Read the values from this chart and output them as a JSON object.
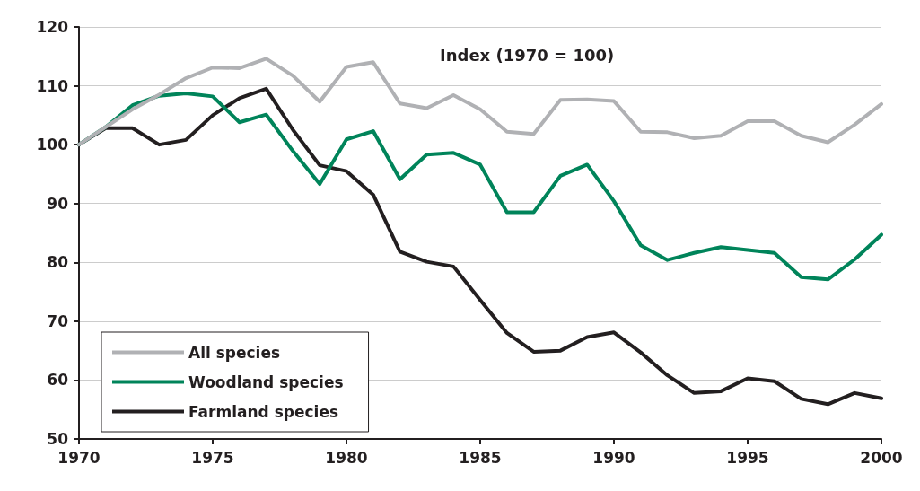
{
  "chart_data": {
    "type": "line",
    "annotations": [
      "Index (1970 = 100)"
    ],
    "x": [
      1970,
      1971,
      1972,
      1973,
      1974,
      1975,
      1976,
      1977,
      1978,
      1979,
      1980,
      1981,
      1982,
      1983,
      1984,
      1985,
      1986,
      1987,
      1988,
      1989,
      1990,
      1991,
      1992,
      1993,
      1994,
      1995,
      1996,
      1997,
      1998,
      1999,
      2000
    ],
    "series": [
      {
        "name": "All species",
        "color": "#b0b1b4",
        "values": [
          100,
          103,
          106,
          108.5,
          111.3,
          113.1,
          113,
          114.6,
          111.7,
          107.3,
          113.2,
          114,
          107,
          106.2,
          108.4,
          106,
          102.2,
          101.8,
          107.6,
          107.7,
          107.4,
          102.2,
          102.1,
          101.1,
          101.5,
          104,
          104,
          101.5,
          100.4,
          103.4,
          106.9
        ]
      },
      {
        "name": "Woodland species",
        "color": "#00845a",
        "values": [
          100,
          103,
          106.7,
          108.3,
          108.7,
          108.2,
          103.8,
          105.1,
          98.9,
          93.3,
          100.9,
          102.3,
          94.1,
          98.3,
          98.6,
          96.6,
          88.5,
          88.5,
          94.7,
          96.6,
          90.4,
          82.9,
          80.4,
          81.6,
          82.6,
          82.1,
          81.6,
          77.5,
          77.1,
          80.5,
          84.7
        ]
      },
      {
        "name": "Farmland species",
        "color": "#231f20",
        "values": [
          100,
          102.8,
          102.8,
          100,
          100.8,
          105,
          107.9,
          109.5,
          102.5,
          96.5,
          95.5,
          91.5,
          81.8,
          80.1,
          79.3,
          73.6,
          68,
          64.8,
          65,
          67.3,
          68.1,
          64.7,
          60.8,
          57.8,
          58.1,
          60.3,
          59.8,
          56.8,
          55.9,
          57.8,
          56.9
        ]
      }
    ],
    "xlim": [
      1970,
      2000
    ],
    "xticks": [
      1970,
      1975,
      1980,
      1985,
      1990,
      1995,
      2000
    ],
    "ylim": [
      50,
      120
    ],
    "yticks": [
      50,
      60,
      70,
      80,
      90,
      100,
      110,
      120
    ],
    "ref_lines": [
      {
        "axis": "y",
        "value": 100,
        "color": "#231f20",
        "line_style": "dashed"
      }
    ],
    "grid": "y",
    "legend": "bottom left",
    "marker": "none",
    "line_style": "solid"
  }
}
